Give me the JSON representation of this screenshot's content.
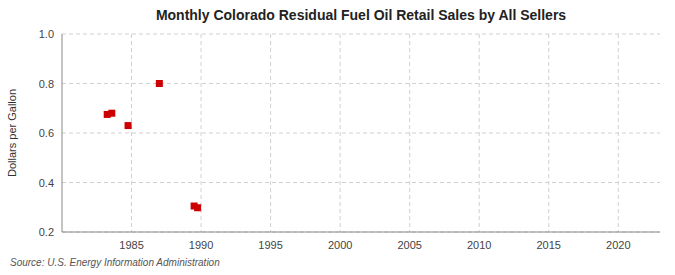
{
  "chart_data": {
    "type": "scatter",
    "title": "Monthly Colorado Residual Fuel Oil Retail Sales by All Sellers",
    "ylabel": "Dollars per Gallon",
    "source": "Source: U.S. Energy Information Administration",
    "x": [
      1983.25,
      1983.58,
      1984.75,
      1987.0,
      1989.5,
      1989.75
    ],
    "values": [
      0.675,
      0.68,
      0.63,
      0.8,
      0.305,
      0.298
    ],
    "color": "#cc0000",
    "marker": "square",
    "xlim": [
      1980,
      2023
    ],
    "ylim": [
      0.2,
      1.0
    ],
    "xticks": [
      1985,
      1990,
      1995,
      2000,
      2005,
      2010,
      2015,
      2020
    ],
    "yticks": [
      0.2,
      0.4,
      0.6,
      0.8,
      {
        "value": 1.0,
        "label": "1.0"
      }
    ],
    "grid": true
  }
}
